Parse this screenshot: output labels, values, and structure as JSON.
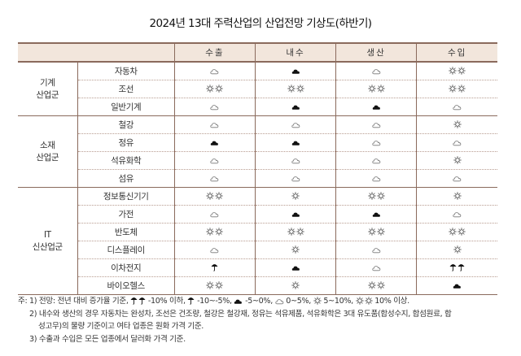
{
  "title": "2024년 13대 주력산업의 산업전망 기상도(하반기)",
  "columns": [
    "수출",
    "내수",
    "생산",
    "수입"
  ],
  "icon_legend": {
    "double-umbrella": "-10% 이하",
    "umbrella": "-10~-5%",
    "dark-cloud": "-5~0%",
    "cloud": "0~5%",
    "sun": "5~10%",
    "double-sun": "10% 이상"
  },
  "groups": [
    {
      "name_line1": "기계",
      "name_line2": "산업군",
      "rows": [
        {
          "item": "자동차",
          "values": [
            "cloud",
            "dark-cloud",
            "cloud",
            "double-sun"
          ]
        },
        {
          "item": "조선",
          "values": [
            "double-sun",
            "double-sun",
            "double-sun",
            "double-sun"
          ]
        },
        {
          "item": "일반기계",
          "values": [
            "cloud",
            "dark-cloud",
            "dark-cloud",
            "cloud"
          ]
        }
      ]
    },
    {
      "name_line1": "소재",
      "name_line2": "산업군",
      "rows": [
        {
          "item": "철강",
          "values": [
            "cloud",
            "cloud",
            "cloud",
            "sun"
          ]
        },
        {
          "item": "정유",
          "values": [
            "dark-cloud",
            "dark-cloud",
            "cloud",
            "cloud"
          ]
        },
        {
          "item": "석유화학",
          "values": [
            "cloud",
            "cloud",
            "cloud",
            "sun"
          ]
        },
        {
          "item": "섬유",
          "values": [
            "cloud",
            "cloud",
            "cloud",
            "cloud"
          ]
        }
      ]
    },
    {
      "name_line1": "IT",
      "name_line2": "신산업군",
      "rows": [
        {
          "item": "정보통신기기",
          "values": [
            "double-sun",
            "sun",
            "double-sun",
            "sun"
          ]
        },
        {
          "item": "가전",
          "values": [
            "cloud",
            "dark-cloud",
            "dark-cloud",
            "cloud"
          ]
        },
        {
          "item": "반도체",
          "values": [
            "double-sun",
            "double-sun",
            "double-sun",
            "double-sun"
          ]
        },
        {
          "item": "디스플레이",
          "values": [
            "cloud",
            "sun",
            "cloud",
            "sun"
          ]
        },
        {
          "item": "이차전지",
          "values": [
            "umbrella",
            "dark-cloud",
            "cloud",
            "double-umbrella"
          ]
        },
        {
          "item": "바이오헬스",
          "values": [
            "double-sun",
            "sun",
            "double-sun",
            "dark-cloud"
          ]
        }
      ]
    }
  ],
  "notes": {
    "n1_prefix": "주: 1) 전망: 전년 대비 증가율 기준,",
    "n1_t1": " -10% 이하,",
    "n1_t2": " -10~-5%,",
    "n1_t3": " -5~0%,",
    "n1_t4": " 0~5%,",
    "n1_t5": " 5~10%,",
    "n1_t6": " 10% 이상.",
    "n2_line1": "2) 내수와 생산의 경우 자동차는 완성차, 조선은 건조량, 철강은 철강재, 정유는 석유제품, 석유화학은 3대 유도품(합성수지, 합섬원료, 합",
    "n2_line2": "성고무)의 물량 기준이고 여타 업종은 원화 가격 기준.",
    "n3": "3) 수출과 수입은 모든 업종에서 달러화 가격 기준."
  }
}
